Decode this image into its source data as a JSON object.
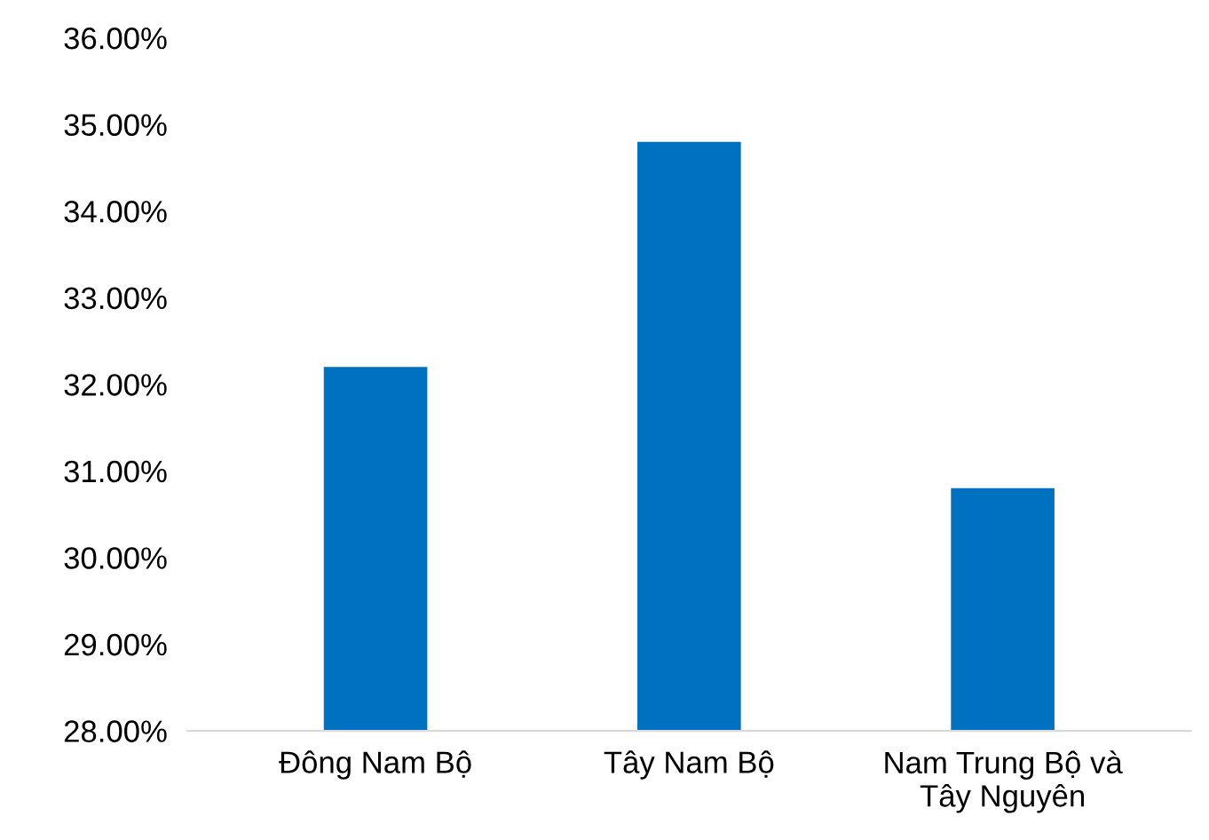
{
  "chart_data": {
    "type": "bar",
    "categories": [
      "Đông Nam Bộ",
      "Tây Nam Bộ",
      "Nam Trung Bộ và\nTây Nguyên"
    ],
    "values": [
      32.2,
      34.8,
      30.8
    ],
    "color": "#0070c0",
    "ylim": [
      28,
      36
    ],
    "yticks": [
      {
        "value": 28,
        "label": "28.00%"
      },
      {
        "value": 29,
        "label": "29.00%"
      },
      {
        "value": 30,
        "label": "30.00%"
      },
      {
        "value": 31,
        "label": "31.00%"
      },
      {
        "value": 32,
        "label": "32.00%"
      },
      {
        "value": 33,
        "label": "33.00%"
      },
      {
        "value": 34,
        "label": "34.00%"
      },
      {
        "value": 35,
        "label": "35.00%"
      },
      {
        "value": 36,
        "label": "36.00%"
      }
    ],
    "grid": false
  }
}
